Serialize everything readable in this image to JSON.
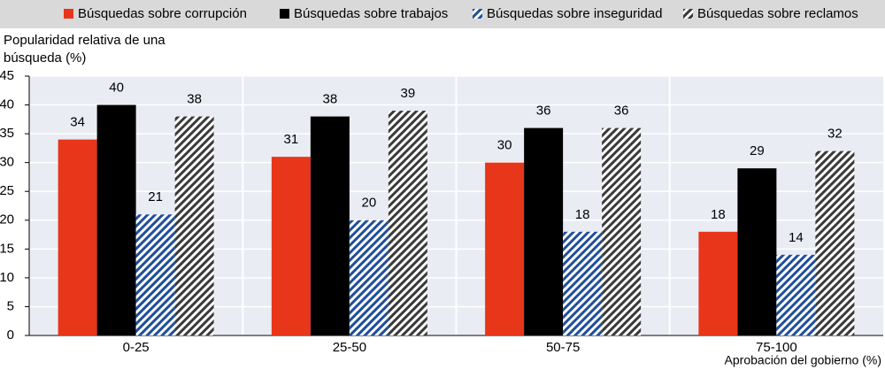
{
  "chart_data": {
    "type": "bar",
    "y_label_lines": [
      "Popularidad relativa de una",
      "búsqueda (%)"
    ],
    "x_label": "Aprobación del gobierno (%)",
    "categories": [
      "0-25",
      "25-50",
      "50-75",
      "75-100"
    ],
    "series": [
      {
        "name": "Búsquedas sobre corrupción",
        "color": "#e8361a",
        "hatch": false,
        "values": [
          34,
          31,
          30,
          18
        ]
      },
      {
        "name": "Búsquedas sobre trabajos",
        "color": "#000000",
        "hatch": false,
        "values": [
          40,
          38,
          36,
          29
        ]
      },
      {
        "name": "Búsquedas sobre inseguridad",
        "color": "#1f4e9a",
        "hatch": true,
        "values": [
          21,
          20,
          18,
          14
        ]
      },
      {
        "name": "Búsquedas sobre reclamos",
        "color": "#3a3a3a",
        "hatch": true,
        "values": [
          38,
          39,
          36,
          32
        ]
      }
    ],
    "ylim": [
      0,
      45
    ],
    "yticks": [
      0,
      5,
      10,
      15,
      20,
      25,
      30,
      35,
      40,
      45
    ],
    "grid": true
  }
}
